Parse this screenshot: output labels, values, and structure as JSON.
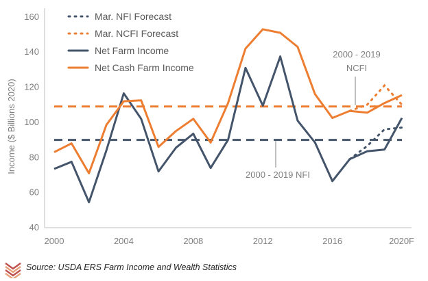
{
  "chart_data": {
    "type": "line",
    "ylabel": "Income ($ Billions 2020)",
    "ylim": [
      40,
      165
    ],
    "yticks": [
      40,
      60,
      80,
      100,
      120,
      140,
      160
    ],
    "xlim": [
      2000,
      2020
    ],
    "xticks": [
      {
        "x": 2000,
        "label": "2000"
      },
      {
        "x": 2004,
        "label": "2004"
      },
      {
        "x": 2008,
        "label": "2008"
      },
      {
        "x": 2012,
        "label": "2012"
      },
      {
        "x": 2016,
        "label": "2016"
      },
      {
        "x": 2020,
        "label": "2020F"
      }
    ],
    "x": [
      2000,
      2001,
      2002,
      2003,
      2004,
      2005,
      2006,
      2007,
      2008,
      2009,
      2010,
      2011,
      2012,
      2013,
      2014,
      2015,
      2016,
      2017,
      2018,
      2019,
      2020
    ],
    "series": [
      {
        "name": "Net Farm Income",
        "color": "#44546a",
        "style": "solid",
        "values": [
          73.5,
          77.5,
          54.5,
          84,
          116.5,
          102,
          72,
          85.5,
          93.5,
          74,
          90,
          131,
          109.5,
          137.5,
          101,
          88.5,
          66.5,
          79,
          83.5,
          84.5,
          102.5
        ]
      },
      {
        "name": "Net Cash Farm Income",
        "color": "#ed7d31",
        "style": "solid",
        "values": [
          83,
          88,
          71,
          98.5,
          112,
          112.5,
          86,
          95,
          102,
          88.5,
          111,
          142,
          153,
          151,
          143,
          116,
          102.5,
          106.5,
          105.5,
          111,
          115.5
        ]
      }
    ],
    "forecasts": [
      {
        "name": "Mar. NFI Forecast",
        "color": "#44546a",
        "style": "dotted",
        "x": [
          2017,
          2018,
          2019,
          2020
        ],
        "values": [
          79,
          86.5,
          96,
          97
        ]
      },
      {
        "name": "Mar. NCFI Forecast",
        "color": "#ed7d31",
        "style": "dotted",
        "x": [
          2017,
          2018,
          2019,
          2020
        ],
        "values": [
          106.5,
          110,
          121,
          110
        ]
      }
    ],
    "reference_lines": [
      {
        "name": "2000 - 2019 NCFI",
        "value": 109,
        "color": "#ed7d31"
      },
      {
        "name": "2000 - 2019 NFI",
        "value": 90,
        "color": "#44546a"
      }
    ],
    "annotations": [
      {
        "target": "2000 - 2019 NCFI",
        "lines": [
          "2000 - 2019",
          "NCFI"
        ]
      },
      {
        "target": "2000 - 2019 NFI",
        "lines": [
          "2000 - 2019 NFI"
        ]
      }
    ],
    "legend_position": "top-left",
    "grid": false
  },
  "source": "Source: USDA ERS Farm Income and Wealth Statistics",
  "logo_colors": [
    "#c0504d",
    "#e6a07a"
  ]
}
